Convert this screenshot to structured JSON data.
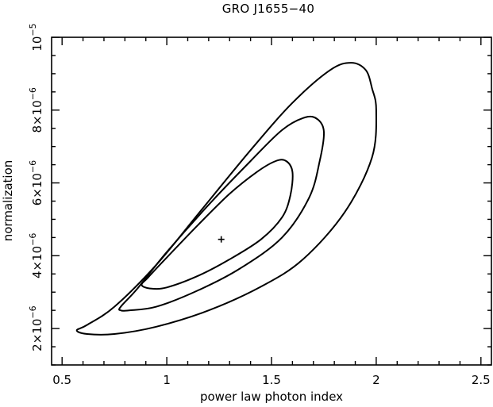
{
  "chart_data": {
    "type": "contour",
    "title": "GRO J1655−40",
    "xlabel": "power law photon index",
    "ylabel": "normalization",
    "xlim": [
      0.45,
      2.55
    ],
    "ylim": [
      1e-06,
      1e-05
    ],
    "x_ticks": [
      {
        "value": 0.5,
        "label": "0.5"
      },
      {
        "value": 1.0,
        "label": "1"
      },
      {
        "value": 1.5,
        "label": "1.5"
      },
      {
        "value": 2.0,
        "label": "2"
      },
      {
        "value": 2.5,
        "label": "2.5"
      }
    ],
    "y_ticks": [
      {
        "value": 2e-06,
        "mantissa": "2",
        "times": "×",
        "base": "10",
        "exponent": "−6"
      },
      {
        "value": 4e-06,
        "mantissa": "4",
        "times": "×",
        "base": "10",
        "exponent": "−6"
      },
      {
        "value": 6e-06,
        "mantissa": "6",
        "times": "×",
        "base": "10",
        "exponent": "−6"
      },
      {
        "value": 8e-06,
        "mantissa": "8",
        "times": "×",
        "base": "10",
        "exponent": "−6"
      },
      {
        "value": 1e-05,
        "mantissa": "",
        "times": "",
        "base": "10",
        "exponent": "−5"
      }
    ],
    "best_fit": {
      "x": 1.26,
      "y": 4.45e-06
    },
    "contours": [
      {
        "level": "inner",
        "points": [
          [
            0.88,
            3.2e-06
          ],
          [
            0.92,
            3.1e-06
          ],
          [
            1.0,
            3.13e-06
          ],
          [
            1.15,
            3.45e-06
          ],
          [
            1.3,
            3.9e-06
          ],
          [
            1.45,
            4.45e-06
          ],
          [
            1.55,
            5.05e-06
          ],
          [
            1.59,
            5.65e-06
          ],
          [
            1.6,
            6.3e-06
          ],
          [
            1.57,
            6.6e-06
          ],
          [
            1.52,
            6.6e-06
          ],
          [
            1.43,
            6.3e-06
          ],
          [
            1.3,
            5.7e-06
          ],
          [
            1.15,
            4.85e-06
          ],
          [
            1.0,
            3.95e-06
          ],
          [
            0.91,
            3.4e-06
          ],
          [
            0.88,
            3.2e-06
          ]
        ]
      },
      {
        "level": "middle",
        "points": [
          [
            0.78,
            2.5e-06
          ],
          [
            0.82,
            2.5e-06
          ],
          [
            0.95,
            2.6e-06
          ],
          [
            1.15,
            3.05e-06
          ],
          [
            1.35,
            3.65e-06
          ],
          [
            1.55,
            4.5e-06
          ],
          [
            1.68,
            5.6e-06
          ],
          [
            1.73,
            6.6e-06
          ],
          [
            1.75,
            7.4e-06
          ],
          [
            1.72,
            7.75e-06
          ],
          [
            1.66,
            7.8e-06
          ],
          [
            1.55,
            7.45e-06
          ],
          [
            1.4,
            6.6e-06
          ],
          [
            1.2,
            5.4e-06
          ],
          [
            1.0,
            4.1e-06
          ],
          [
            0.86,
            3.1e-06
          ],
          [
            0.78,
            2.6e-06
          ],
          [
            0.78,
            2.5e-06
          ]
        ]
      },
      {
        "level": "outer",
        "points": [
          [
            0.57,
            1.95e-06
          ],
          [
            0.62,
            1.85e-06
          ],
          [
            0.75,
            1.85e-06
          ],
          [
            0.95,
            2.05e-06
          ],
          [
            1.2,
            2.5e-06
          ],
          [
            1.45,
            3.15e-06
          ],
          [
            1.65,
            3.9e-06
          ],
          [
            1.85,
            5.2e-06
          ],
          [
            1.98,
            6.7e-06
          ],
          [
            2.0,
            8e-06
          ],
          [
            1.98,
            8.6e-06
          ],
          [
            1.95,
            9.1e-06
          ],
          [
            1.88,
            9.3e-06
          ],
          [
            1.78,
            9.1e-06
          ],
          [
            1.6,
            8.2e-06
          ],
          [
            1.4,
            6.9e-06
          ],
          [
            1.15,
            5.15e-06
          ],
          [
            0.95,
            3.75e-06
          ],
          [
            0.75,
            2.6e-06
          ],
          [
            0.62,
            2.1e-06
          ],
          [
            0.57,
            1.95e-06
          ]
        ]
      }
    ],
    "grid": false,
    "legend": "none"
  }
}
